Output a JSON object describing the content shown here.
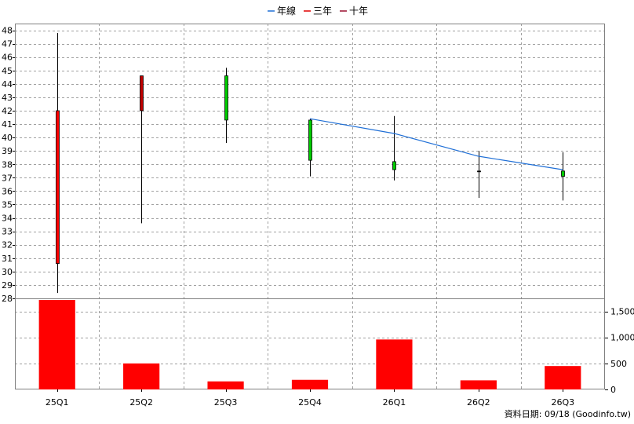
{
  "chart_data": {
    "type": "candlestick",
    "legend": [
      {
        "label": "年線",
        "color": "#1f6fd6"
      },
      {
        "label": "三年",
        "color": "#e00000"
      },
      {
        "label": "十年",
        "color": "#9b1030"
      }
    ],
    "categories": [
      "25Q1",
      "25Q2",
      "25Q3",
      "25Q4",
      "26Q1",
      "26Q2",
      "26Q3"
    ],
    "candles": [
      {
        "open": 42.0,
        "high": 47.8,
        "low": 28.4,
        "close": 30.6,
        "color": "#ff0000"
      },
      {
        "open": 44.6,
        "high": 44.6,
        "low": 33.6,
        "close": 42.0,
        "color": "#c00000"
      },
      {
        "open": 41.3,
        "high": 45.2,
        "low": 39.6,
        "close": 44.6,
        "color": "#00cc00"
      },
      {
        "open": 38.3,
        "high": 41.4,
        "low": 37.1,
        "close": 41.3,
        "color": "#00cc00"
      },
      {
        "open": 37.6,
        "high": 41.6,
        "low": 36.8,
        "close": 38.2,
        "color": "#00cc00"
      },
      {
        "open": 37.5,
        "high": 39.0,
        "low": 35.5,
        "close": 37.5,
        "color": "#000000"
      },
      {
        "open": 37.1,
        "high": 38.9,
        "low": 35.3,
        "close": 37.5,
        "color": "#00cc00"
      }
    ],
    "line_series": {
      "name": "年線",
      "color": "#1f6fd6",
      "points": [
        {
          "category": "25Q4",
          "value": 41.4
        },
        {
          "category": "26Q1",
          "value": 40.3
        },
        {
          "category": "26Q2",
          "value": 38.6
        },
        {
          "category": "26Q3",
          "value": 37.6
        }
      ]
    },
    "price_axis": {
      "min": 28,
      "max": 48.5,
      "ticks": [
        28,
        29,
        30,
        31,
        32,
        33,
        34,
        35,
        36,
        37,
        38,
        39,
        40,
        41,
        42,
        43,
        44,
        45,
        46,
        47,
        48
      ]
    },
    "volume": {
      "values": [
        1720,
        500,
        155,
        185,
        960,
        175,
        450
      ],
      "color": "#ff0000",
      "axis": {
        "min": 0,
        "max": 1750,
        "ticks": [
          0,
          500,
          1000,
          1500
        ],
        "tick_labels": [
          "0",
          "500",
          "1,000",
          "1,500"
        ]
      }
    },
    "grid": true
  },
  "footer": {
    "text": "資料日期: 09/18  (Goodinfo.tw)"
  }
}
